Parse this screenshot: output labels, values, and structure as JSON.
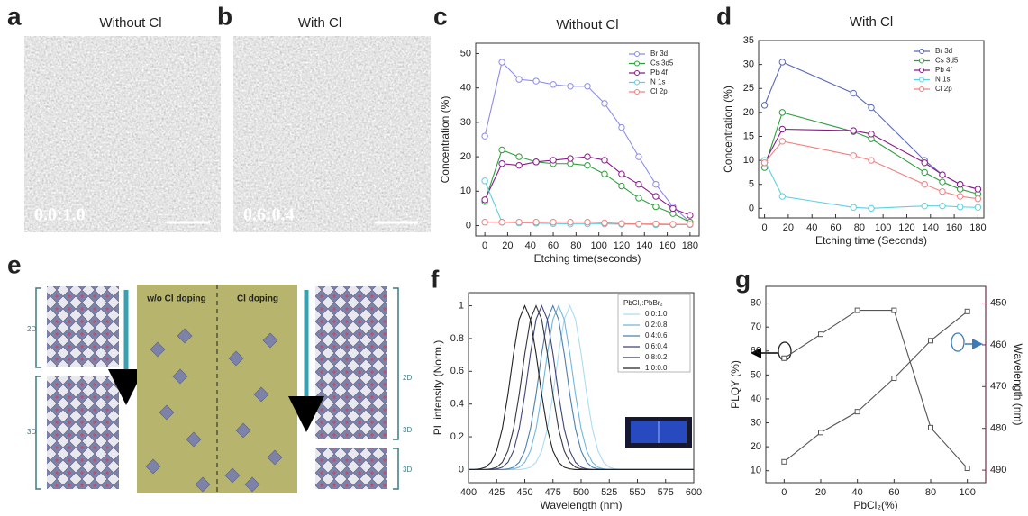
{
  "panel_letters": [
    "a",
    "b",
    "c",
    "d",
    "e",
    "f",
    "g"
  ],
  "images": {
    "a": {
      "title": "Without Cl",
      "ratio": "0.0:1.0"
    },
    "b": {
      "title": "With Cl",
      "ratio": "0.6:0.4"
    }
  },
  "schematic": {
    "left_2d": "2D",
    "left_3d": "3D",
    "center_left": "w/o Cl doping",
    "center_right": "Cl doping",
    "right_2d": "2D",
    "right_3d_top": "3D",
    "right_3d_bottom": "3D"
  },
  "chart_data": [
    {
      "type": "line",
      "title": "Without Cl",
      "xlabel": "Etching time(seconds)",
      "ylabel": "Concentration (%)",
      "x": [
        0,
        15,
        30,
        45,
        60,
        75,
        90,
        105,
        120,
        135,
        150,
        165,
        180
      ],
      "xlim": [
        -8,
        188
      ],
      "xticks": [
        0,
        20,
        40,
        60,
        80,
        100,
        120,
        140,
        160,
        180
      ],
      "ylim": [
        -3,
        53
      ],
      "yticks": [
        0,
        10,
        20,
        30,
        40,
        50
      ],
      "marker": "circle",
      "legend": "upper right",
      "series": [
        {
          "name": "Br 3d",
          "color": "#8c8ce8",
          "values": [
            26,
            47.5,
            42.5,
            42,
            41,
            40.5,
            40.5,
            35.5,
            28.5,
            20,
            12,
            5.5,
            1
          ]
        },
        {
          "name": "Cs 3d5",
          "color": "#2e9e3e",
          "values": [
            7,
            22,
            20,
            18.5,
            18,
            18,
            17.5,
            15,
            11.5,
            8,
            5.5,
            3.5,
            1
          ]
        },
        {
          "name": "Pb 4f",
          "color": "#8a1a8a",
          "values": [
            7.5,
            18,
            17.5,
            18.5,
            19,
            19.5,
            20,
            19,
            15,
            12,
            8.5,
            5,
            3
          ]
        },
        {
          "name": "N 1s",
          "color": "#5cd0e0",
          "values": [
            13,
            1,
            0.8,
            0.7,
            0.6,
            0.5,
            0.5,
            0.5,
            0.4,
            0.4,
            0.3,
            0.3,
            0.3
          ]
        },
        {
          "name": "Cl 2p",
          "color": "#f08080",
          "values": [
            1,
            1,
            1,
            1,
            1,
            1,
            1,
            0.8,
            0.6,
            0.5,
            0.5,
            0.4,
            0.4
          ]
        }
      ]
    },
    {
      "type": "line",
      "title": "With Cl",
      "xlabel": "Etching time (Seconds)",
      "ylabel": "Concentration (%)",
      "x": [
        0,
        15,
        75,
        90,
        135,
        150,
        165,
        180
      ],
      "xlim": [
        -5,
        185
      ],
      "xticks": [
        0,
        20,
        40,
        60,
        80,
        100,
        120,
        140,
        160,
        180
      ],
      "ylim": [
        -2,
        35
      ],
      "yticks": [
        0,
        5,
        10,
        15,
        20,
        25,
        30,
        35
      ],
      "marker": "circle",
      "legend": "upper right",
      "series": [
        {
          "name": "Br 3d",
          "color": "#5a6ab8",
          "values": [
            21.5,
            30.5,
            24,
            21,
            10,
            7,
            5,
            4
          ]
        },
        {
          "name": "Cs 3d5",
          "color": "#2e9e3e",
          "values": [
            8.5,
            20,
            16,
            14.5,
            7.5,
            5.5,
            4,
            3
          ]
        },
        {
          "name": "Pb 4f",
          "color": "#8a1a8a",
          "values": [
            9.5,
            16.5,
            16.2,
            15.5,
            9.5,
            7,
            5,
            4
          ]
        },
        {
          "name": "N 1s",
          "color": "#5cd0e0",
          "values": [
            10,
            2.5,
            0.2,
            0,
            0.5,
            0.5,
            0.3,
            0.2
          ]
        },
        {
          "name": "Cl 2p",
          "color": "#f08080",
          "values": [
            9.5,
            14,
            11,
            10,
            5,
            3.5,
            2.5,
            2
          ]
        }
      ]
    },
    {
      "type": "line",
      "xlabel": "Wavelength (nm)",
      "ylabel": "PL intensity (Norm.)",
      "x": [
        400,
        405,
        410,
        415,
        420,
        425,
        430,
        435,
        440,
        445,
        450,
        455,
        460,
        465,
        470,
        475,
        480,
        485,
        490,
        495,
        500,
        505,
        510,
        515,
        520,
        525,
        530,
        535,
        540,
        545,
        550,
        555,
        560,
        565,
        570,
        575,
        580,
        585,
        590,
        595,
        600
      ],
      "xlim": [
        400,
        600
      ],
      "xticks": [
        400,
        425,
        450,
        475,
        500,
        525,
        550,
        575,
        600
      ],
      "ylim": [
        -0.08,
        1.08
      ],
      "yticks": [
        0.0,
        0.2,
        0.4,
        0.6,
        0.8,
        1.0
      ],
      "legend": "upper right",
      "legend_title": "PbCl₂:PbBr₂",
      "series": [
        {
          "name": "0.0:1.0",
          "color": "#a9dcf2",
          "values": [
            0,
            0,
            0,
            0,
            0,
            0,
            0,
            0,
            0,
            0,
            0.004,
            0.014,
            0.044,
            0.114,
            0.249,
            0.458,
            0.707,
            0.917,
            1,
            0.917,
            0.707,
            0.458,
            0.249,
            0.114,
            0.044,
            0.014,
            0.004,
            0,
            0,
            0,
            0,
            0,
            0,
            0,
            0,
            0,
            0,
            0,
            0,
            0,
            0
          ]
        },
        {
          "name": "0.2:0.8",
          "color": "#6fb8de",
          "values": [
            0,
            0,
            0,
            0,
            0,
            0,
            0,
            0,
            0.004,
            0.014,
            0.044,
            0.114,
            0.249,
            0.458,
            0.707,
            0.917,
            1,
            0.917,
            0.707,
            0.458,
            0.249,
            0.114,
            0.044,
            0.014,
            0.004,
            0,
            0,
            0,
            0,
            0,
            0,
            0,
            0,
            0,
            0,
            0,
            0,
            0,
            0,
            0,
            0
          ]
        },
        {
          "name": "0.4:0.6",
          "color": "#4d7fb0",
          "values": [
            0,
            0,
            0,
            0,
            0,
            0,
            0,
            0.004,
            0.014,
            0.044,
            0.114,
            0.249,
            0.458,
            0.707,
            0.917,
            1,
            0.917,
            0.707,
            0.458,
            0.249,
            0.114,
            0.044,
            0.014,
            0.004,
            0,
            0,
            0,
            0,
            0,
            0,
            0,
            0,
            0,
            0,
            0,
            0,
            0,
            0,
            0,
            0,
            0
          ]
        },
        {
          "name": "0.6:0.4",
          "color": "#3e4478",
          "values": [
            0,
            0,
            0,
            0,
            0,
            0.004,
            0.014,
            0.044,
            0.114,
            0.249,
            0.458,
            0.707,
            0.917,
            1,
            0.917,
            0.707,
            0.458,
            0.249,
            0.114,
            0.044,
            0.014,
            0.004,
            0,
            0,
            0,
            0,
            0,
            0,
            0,
            0,
            0,
            0,
            0,
            0,
            0,
            0,
            0,
            0,
            0,
            0,
            0
          ]
        },
        {
          "name": "0.8:0.2",
          "color": "#363640",
          "values": [
            0,
            0,
            0,
            0,
            0.004,
            0.014,
            0.044,
            0.114,
            0.249,
            0.458,
            0.707,
            0.917,
            1,
            0.917,
            0.707,
            0.458,
            0.249,
            0.114,
            0.044,
            0.014,
            0.004,
            0,
            0,
            0,
            0,
            0,
            0,
            0,
            0,
            0,
            0,
            0,
            0,
            0,
            0,
            0,
            0,
            0,
            0,
            0,
            0
          ]
        },
        {
          "name": "1.0:0.0",
          "color": "#222222",
          "values": [
            0,
            0,
            0.004,
            0.014,
            0.044,
            0.114,
            0.249,
            0.458,
            0.707,
            0.917,
            1,
            0.917,
            0.707,
            0.458,
            0.249,
            0.114,
            0.044,
            0.014,
            0.004,
            0,
            0,
            0,
            0,
            0,
            0,
            0,
            0,
            0,
            0,
            0,
            0,
            0,
            0,
            0,
            0,
            0,
            0,
            0,
            0,
            0,
            0
          ]
        }
      ]
    },
    {
      "type": "line",
      "xlabel": "PbCl₂(%)",
      "ylabel": "PLQY (%)",
      "y2label": "Wavelength (nm)",
      "x": [
        0,
        20,
        40,
        60,
        80,
        100
      ],
      "xlim": [
        -10,
        110
      ],
      "xticks": [
        0,
        20,
        40,
        60,
        80,
        100
      ],
      "ylim": [
        5,
        87
      ],
      "yticks": [
        10,
        20,
        30,
        40,
        50,
        60,
        70,
        80
      ],
      "y2lim": [
        493,
        446
      ],
      "y2ticks": [
        450,
        460,
        470,
        480,
        490
      ],
      "y2color": "#7a2a4a",
      "marker": "square",
      "series": [
        {
          "color": "#555555",
          "values": [
            57,
            67,
            77,
            77,
            28,
            11
          ]
        },
        {
          "color": "#555555",
          "axis": "y2",
          "values": [
            488,
            481,
            476,
            468,
            459,
            452
          ]
        }
      ]
    }
  ]
}
